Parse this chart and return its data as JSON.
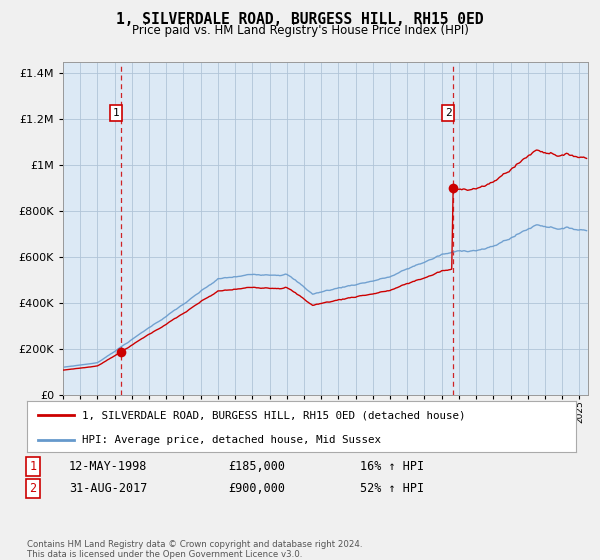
{
  "title": "1, SILVERDALE ROAD, BURGESS HILL, RH15 0ED",
  "subtitle": "Price paid vs. HM Land Registry's House Price Index (HPI)",
  "legend_line1": "1, SILVERDALE ROAD, BURGESS HILL, RH15 0ED (detached house)",
  "legend_line2": "HPI: Average price, detached house, Mid Sussex",
  "transaction1_date": "12-MAY-1998",
  "transaction1_price": "£185,000",
  "transaction1_hpi": "16% ↑ HPI",
  "transaction1_year": 1998.37,
  "transaction1_value": 185000,
  "transaction2_date": "31-AUG-2017",
  "transaction2_price": "£900,000",
  "transaction2_hpi": "52% ↑ HPI",
  "transaction2_year": 2017.67,
  "transaction2_value": 900000,
  "hpi_color": "#6699cc",
  "price_color": "#cc0000",
  "vline_color": "#cc0000",
  "background_color": "#f0f0f0",
  "plot_bg_color": "#dce9f5",
  "grid_color": "#b0c4d8",
  "ylim_min": 0,
  "ylim_max": 1450000,
  "xlim_min": 1995.0,
  "xlim_max": 2025.5,
  "footnote": "Contains HM Land Registry data © Crown copyright and database right 2024.\nThis data is licensed under the Open Government Licence v3.0."
}
